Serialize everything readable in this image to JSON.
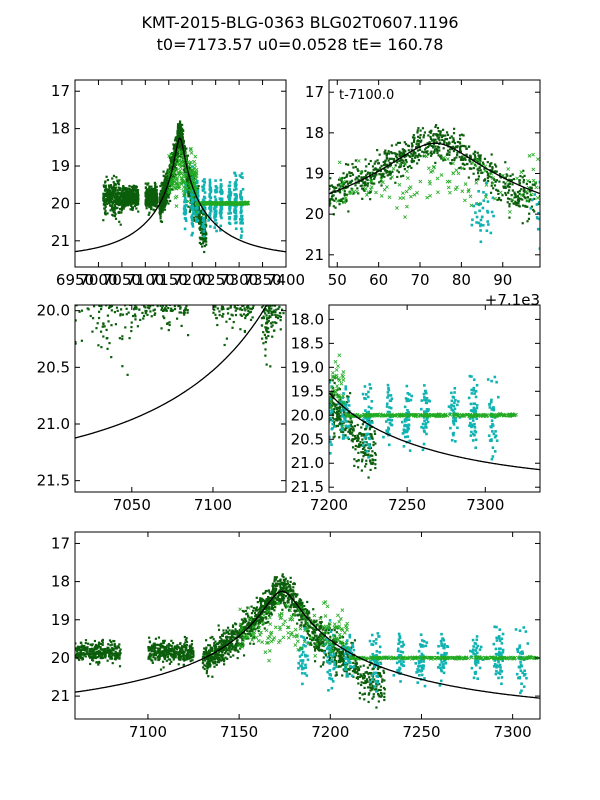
{
  "title": {
    "line1": "KMT-2015-BLG-0363 BLG02T0607.1196",
    "line2": "t0=7173.57 u0=0.0528 tE= 160.78"
  },
  "colors": {
    "dark_points": "#0b5e0b",
    "green_x": "#22aa22",
    "cyan_points": "#10b2b2",
    "model": "#000000"
  },
  "model": {
    "t0": 7173.57,
    "u0": 0.0528,
    "tE": 160.78,
    "base_mag": 21.45
  },
  "chart_data": [
    {
      "type": "scatter",
      "panel": "top-left",
      "xlim": [
        6950,
        7400
      ],
      "ylim": [
        21.7,
        16.7
      ],
      "x_ticks": [
        6950,
        7000,
        7050,
        7100,
        7150,
        7200,
        7250,
        7300,
        7350,
        7400
      ],
      "x_tick_labels": [
        "6950",
        "7000",
        "7050",
        "7100",
        "7150",
        "7200",
        "7250",
        "7300",
        "7350",
        "7400"
      ],
      "y_ticks": [
        17,
        18,
        19,
        20,
        21
      ],
      "y_tick_labels": [
        "17",
        "18",
        "19",
        "20",
        "21"
      ],
      "annotation": "",
      "offset_label": ""
    },
    {
      "type": "scatter",
      "panel": "top-right",
      "xlim": [
        48,
        99
      ],
      "ylim": [
        21.3,
        16.7
      ],
      "x_ticks": [
        50,
        60,
        70,
        80,
        90
      ],
      "x_tick_labels": [
        "50",
        "60",
        "70",
        "80",
        "90"
      ],
      "y_ticks": [
        17,
        18,
        19,
        20,
        21
      ],
      "y_tick_labels": [
        "17",
        "18",
        "19",
        "20",
        "21"
      ],
      "annotation": "t-7100.0",
      "offset_label": "+7.1e3"
    },
    {
      "type": "scatter",
      "panel": "middle-left",
      "xlim": [
        7015,
        7145
      ],
      "ylim": [
        21.6,
        19.95
      ],
      "x_ticks": [
        7050,
        7100
      ],
      "x_tick_labels": [
        "7050",
        "7100"
      ],
      "y_ticks": [
        20.0,
        20.5,
        21.0,
        21.5
      ],
      "y_tick_labels": [
        "20.0",
        "20.5",
        "21.0",
        "21.5"
      ],
      "annotation": "",
      "offset_label": ""
    },
    {
      "type": "scatter",
      "panel": "middle-right",
      "xlim": [
        7200,
        7335
      ],
      "ylim": [
        21.6,
        17.7
      ],
      "x_ticks": [
        7200,
        7250,
        7300
      ],
      "x_tick_labels": [
        "7200",
        "7250",
        "7300"
      ],
      "y_ticks": [
        18.0,
        18.5,
        19.0,
        19.5,
        20.0,
        20.5,
        21.0,
        21.5
      ],
      "y_tick_labels": [
        "18.0",
        "18.5",
        "19.0",
        "19.5",
        "20.0",
        "20.5",
        "21.0",
        "21.5"
      ],
      "annotation": "",
      "offset_label": ""
    },
    {
      "type": "scatter",
      "panel": "bottom",
      "xlim": [
        7060,
        7315
      ],
      "ylim": [
        21.6,
        16.7
      ],
      "x_ticks": [
        7100,
        7150,
        7200,
        7250,
        7300
      ],
      "x_tick_labels": [
        "7100",
        "7150",
        "7200",
        "7250",
        "7300"
      ],
      "y_ticks": [
        17,
        18,
        19,
        20,
        21
      ],
      "y_tick_labels": [
        "17",
        "18",
        "19",
        "20",
        "21"
      ],
      "annotation": "",
      "offset_label": ""
    }
  ]
}
